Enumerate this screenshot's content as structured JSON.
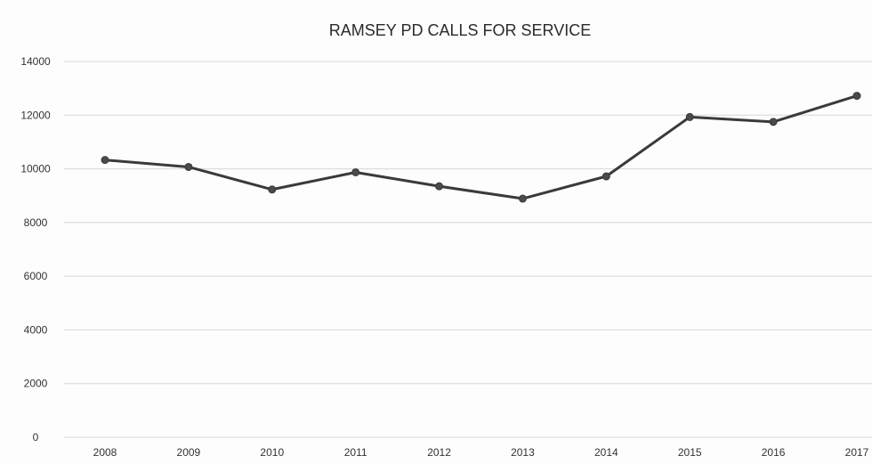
{
  "chart_data": {
    "type": "line",
    "title": "RAMSEY PD CALLS FOR SERVICE",
    "xlabel": "",
    "ylabel": "",
    "categories": [
      "2008",
      "2009",
      "2010",
      "2011",
      "2012",
      "2013",
      "2014",
      "2015",
      "2016",
      "2017"
    ],
    "series": [
      {
        "values": [
          10330,
          10070,
          9230,
          9870,
          9350,
          8890,
          9720,
          11930,
          11750,
          12720
        ],
        "color": "#3a3a3a"
      }
    ],
    "yticks": [
      "0",
      "2000",
      "4000",
      "6000",
      "8000",
      "10000",
      "12000",
      "14000"
    ],
    "ylim": [
      0,
      14000
    ],
    "grid": true,
    "legend": "none"
  }
}
